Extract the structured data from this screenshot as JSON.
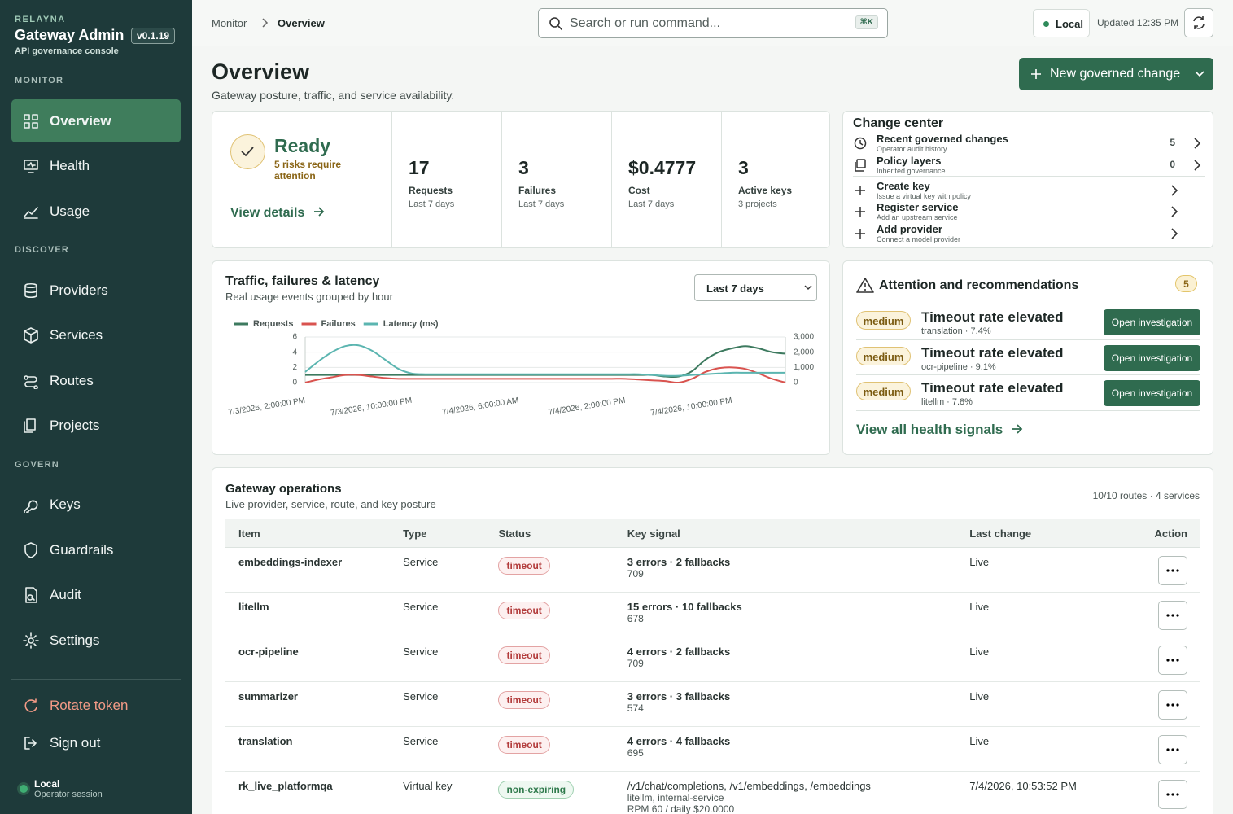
{
  "sidebar": {
    "brand": "RELAYNA",
    "title": "Gateway Admin",
    "version": "v0.1.19",
    "subtitle": "API governance console",
    "sections": [
      {
        "heading": "MONITOR",
        "items": [
          "Overview",
          "Health",
          "Usage"
        ]
      },
      {
        "heading": "DISCOVER",
        "items": [
          "Providers",
          "Services",
          "Routes",
          "Projects"
        ]
      },
      {
        "heading": "GOVERN",
        "items": [
          "Keys",
          "Guardrails",
          "Audit",
          "Settings"
        ]
      }
    ],
    "actions": [
      "Rotate token",
      "Sign out"
    ],
    "session": {
      "name": "Local",
      "role": "Operator session"
    }
  },
  "topbar": {
    "breadcrumb": [
      "Monitor",
      "Overview"
    ],
    "search": "Search or run command...",
    "shortcut": "⌘K",
    "environment": "Local",
    "updated": "Updated 12:35 PM"
  },
  "header": {
    "title": "Overview",
    "subtitle": "Gateway posture, traffic, and service availability.",
    "button": "New governed change"
  },
  "status": {
    "title": "Ready",
    "note": "5 risks require attention",
    "link": "View details"
  },
  "metrics": [
    {
      "value": 17,
      "label": "Requests",
      "period": "Last 7 days"
    },
    {
      "value": 3,
      "label": "Failures",
      "period": "Last 7 days"
    },
    {
      "value": "$0.4777",
      "label": "Cost",
      "period": "Last 7 days"
    },
    {
      "value": 3,
      "label": "Active keys",
      "period": "3 projects"
    }
  ],
  "change_center": {
    "title": "Change center",
    "items": [
      {
        "title": "Recent governed changes",
        "sub": "Operator audit history",
        "count": 5
      },
      {
        "title": "Policy layers",
        "sub": "Inherited governance",
        "count": 0
      },
      {
        "title": "Create key",
        "sub": "Issue a virtual key with policy"
      },
      {
        "title": "Register service",
        "sub": "Add an upstream service"
      },
      {
        "title": "Add provider",
        "sub": "Connect a model provider"
      }
    ]
  },
  "traffic": {
    "title": "Traffic, failures & latency",
    "subtitle": "Real usage events grouped by hour",
    "range": "Last 7 days",
    "chart_data": {
      "type": "line",
      "categories": [
        "7/3/2026, 2:00:00 PM",
        null,
        null,
        null,
        null,
        null,
        null,
        null,
        "7/3/2026, 10:00:00 PM",
        null,
        null,
        null,
        null,
        null,
        null,
        null,
        "7/4/2026, 6:00:00 AM",
        null,
        null,
        null,
        null,
        null,
        null,
        null,
        "7/4/2026, 2:00:00 PM",
        null,
        null,
        null,
        null,
        null,
        null,
        null,
        "7/4/2026, 10:00:00 PM",
        null,
        null,
        null,
        null
      ],
      "series": [
        {
          "name": "Requests",
          "color": "#3d7a5f",
          "values": [
            1,
            1,
            1,
            1,
            1,
            1,
            1,
            1,
            1,
            1,
            1,
            1,
            1,
            1,
            1,
            1,
            1,
            1,
            1,
            1,
            1,
            1,
            1,
            1,
            1,
            1,
            1,
            0.8,
            0.8,
            1.5,
            3,
            4,
            4.5,
            4.8,
            4.5,
            4,
            3.8
          ]
        },
        {
          "name": "Failures",
          "color": "#d9534f",
          "values": [
            0,
            0.4,
            0.7,
            1,
            1,
            0.8,
            0.6,
            0.5,
            0.5,
            0.5,
            0.5,
            0.5,
            0.5,
            0.5,
            0.5,
            0.5,
            0.5,
            0.5,
            0.5,
            0.5,
            0.5,
            0.5,
            0.5,
            0.5,
            0.5,
            0.4,
            0.3,
            0.2,
            0,
            0.5,
            1.4,
            1.9,
            2,
            1.8,
            1.2,
            0.5,
            0
          ]
        },
        {
          "name": "Latency (ms)",
          "color": "#5bb5b0",
          "axis": "y2",
          "values": [
            700,
            1400,
            2000,
            2400,
            2450,
            2100,
            1500,
            900,
            600,
            550,
            550,
            550,
            550,
            550,
            550,
            550,
            550,
            550,
            550,
            550,
            550,
            550,
            550,
            550,
            550,
            550,
            500,
            450,
            450,
            500,
            550,
            600,
            650,
            650,
            650,
            650,
            650
          ]
        }
      ],
      "ylim": [
        0,
        6
      ],
      "yticks": [
        0,
        2,
        4,
        6
      ],
      "y2lim": [
        0,
        3000
      ],
      "y2ticks": [
        0,
        {
          "value": 1000,
          "label": "1,000"
        },
        {
          "value": 2000,
          "label": "2,000"
        },
        {
          "value": 3000,
          "label": "3,000"
        }
      ],
      "grid": true,
      "legend": "top-left"
    }
  },
  "attention": {
    "title": "Attention and recommendations",
    "count": 5,
    "items": [
      {
        "severity": "medium",
        "title": "Timeout rate elevated",
        "detail": "translation · 7.4%",
        "action": "Open investigation"
      },
      {
        "severity": "medium",
        "title": "Timeout rate elevated",
        "detail": "ocr-pipeline · 9.1%",
        "action": "Open investigation"
      },
      {
        "severity": "medium",
        "title": "Timeout rate elevated",
        "detail": "litellm · 7.8%",
        "action": "Open investigation"
      }
    ],
    "link": "View all health signals"
  },
  "operations": {
    "title": "Gateway operations",
    "subtitle": "Live provider, service, route, and key posture",
    "summary": "10/10 routes · 4 services",
    "columns": [
      "Item",
      "Type",
      "Status",
      "Key signal",
      "Last change",
      "Action"
    ],
    "rows": [
      {
        "item": "embeddings-indexer",
        "type": "Service",
        "status": "timeout",
        "signal": [
          "3 errors · 2 fallbacks",
          "709"
        ],
        "last_change": "Live"
      },
      {
        "item": "litellm",
        "type": "Service",
        "status": "timeout",
        "signal": [
          "15 errors · 10 fallbacks",
          "678"
        ],
        "last_change": "Live"
      },
      {
        "item": "ocr-pipeline",
        "type": "Service",
        "status": "timeout",
        "signal": [
          "4 errors · 2 fallbacks",
          "709"
        ],
        "last_change": "Live"
      },
      {
        "item": "summarizer",
        "type": "Service",
        "status": "timeout",
        "signal": [
          "3 errors · 3 fallbacks",
          "574"
        ],
        "last_change": "Live"
      },
      {
        "item": "translation",
        "type": "Service",
        "status": "timeout",
        "signal": [
          "4 errors · 4 fallbacks",
          "695"
        ],
        "last_change": "Live"
      },
      {
        "item": "rk_live_platformqa",
        "type": "Virtual key",
        "status": "non-expiring",
        "signal": [
          "/v1/chat/completions, /v1/embeddings, /embeddings",
          "litellm, internal-service",
          "RPM 60 / daily $20.0000"
        ],
        "last_change": "7/4/2026, 10:53:52 PM"
      }
    ]
  }
}
